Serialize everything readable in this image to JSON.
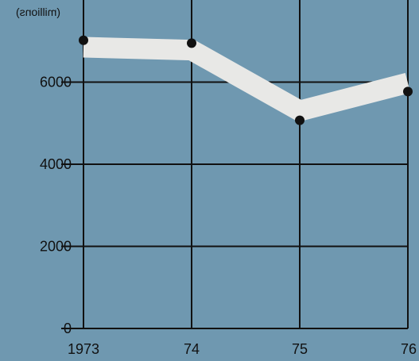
{
  "chart_data": {
    "type": "line",
    "title": "",
    "xlabel": "",
    "ylabel": "",
    "unit_label": "(millions)",
    "unit_label_mirrored": true,
    "categories": [
      "1973",
      "74",
      "75",
      "76"
    ],
    "series": [
      {
        "values": [
          7020,
          6950,
          5070,
          5770
        ]
      }
    ],
    "band": {
      "values": [
        6850,
        6780,
        5300,
        5980
      ]
    },
    "yticks": [
      0,
      2000,
      4000,
      6000
    ],
    "ylim": [
      0,
      8000
    ],
    "grid": true,
    "colors": {
      "background": "#6f98b0",
      "grid": "#111111",
      "band": "#e8e8e6",
      "points": "#111111",
      "text": "#111111"
    }
  }
}
